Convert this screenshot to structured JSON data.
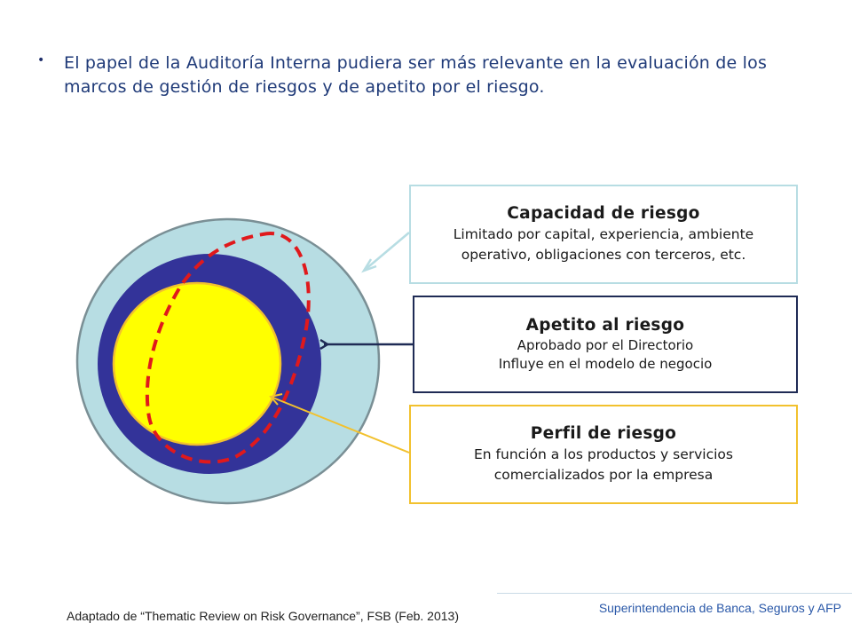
{
  "bullet": {
    "marker": "•",
    "text": "El papel de la Auditoría Interna pudiera ser más relevante en la evaluación de los marcos de gestión de riesgos y de apetito por el riesgo."
  },
  "diagram": {
    "colors": {
      "capacity_fill": "#b7dde3",
      "appetite_fill": "#333399",
      "profile_fill": "#ffff00",
      "profile_stroke": "#f2c12e",
      "dashed_outline": "#e0191c",
      "outer_stroke": "#7a8f95",
      "appetite_arrow": "#1f2b55"
    },
    "boxes": {
      "capacity": {
        "title": "Capacidad de riesgo",
        "line1": "Limitado por capital, experiencia, ambiente",
        "line2": "operativo, obligaciones con terceros, etc."
      },
      "appetite": {
        "title": "Apetito al riesgo",
        "line1": "Aprobado por el Directorio",
        "line2": "Influye en el modelo de negocio"
      },
      "profile": {
        "title": "Perfil de riesgo",
        "line1": "En función a los productos y servicios",
        "line2": "comercializados por la empresa"
      }
    }
  },
  "footer": {
    "source": "Adaptado de “Thematic Review on Risk Governance”, FSB (Feb. 2013)",
    "organization": "Superintendencia de Banca, Seguros y AFP"
  }
}
